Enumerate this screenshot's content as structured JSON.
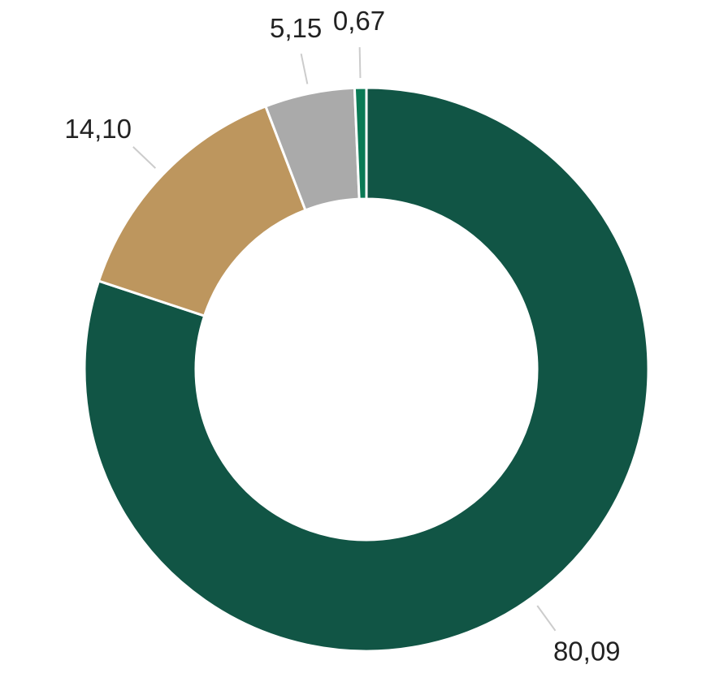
{
  "chart_data": {
    "type": "pie",
    "variant": "donut",
    "start": "top, clockwise",
    "slices": [
      {
        "label": "80,09",
        "value": 80.09,
        "color": "#115545"
      },
      {
        "label": "14,10",
        "value": 14.1,
        "color": "#BD965E"
      },
      {
        "label": "5,15",
        "value": 5.15,
        "color": "#AAAAAA"
      },
      {
        "label": "0,67",
        "value": 0.67,
        "color": "#0A7A55"
      }
    ],
    "legend": "none"
  }
}
